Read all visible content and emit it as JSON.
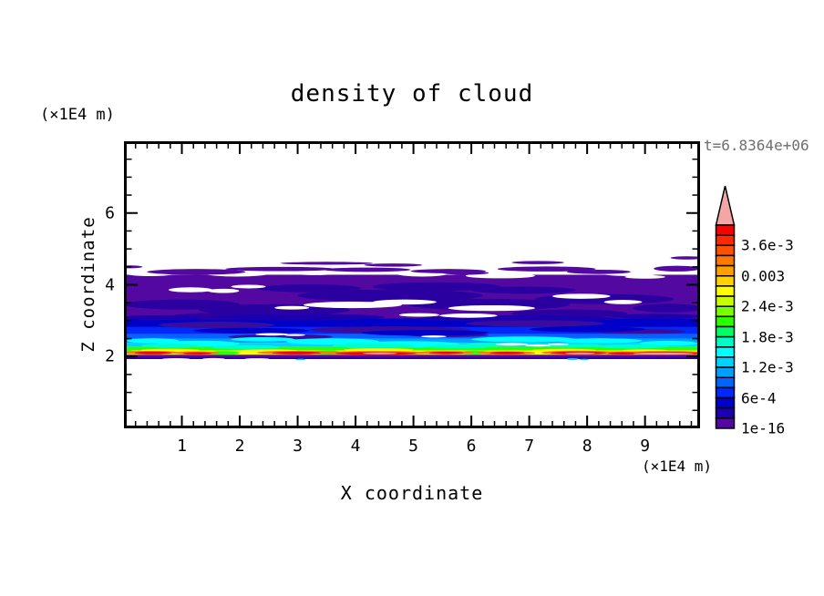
{
  "chart_data": {
    "type": "filled_contour",
    "title": "density of cloud",
    "xlabel": "X coordinate",
    "ylabel": "Z coordinate",
    "x_unit": "(×1E4 m)",
    "y_unit": "(×1E4 m)",
    "timestamp": "t=6.8364e+06",
    "timestamp_color": "#6e6e6e",
    "x_range": [
      0,
      9.95
    ],
    "z_range": [
      0,
      8
    ],
    "x_major_ticks": [
      1,
      2,
      3,
      4,
      5,
      6,
      7,
      8,
      9
    ],
    "x_minor_step": 0.2,
    "z_major_ticks": [
      2,
      4,
      6
    ],
    "z_minor_step": 0.5,
    "grid": false,
    "colorbar": {
      "position": "right",
      "segment_colors_bottom_to_top": [
        "#5408A2",
        "#1C00AE",
        "#0000C8",
        "#0028FA",
        "#0064FF",
        "#00A0FF",
        "#00D2FF",
        "#00FFFF",
        "#00FFC8",
        "#00FF64",
        "#28FF00",
        "#78FF00",
        "#C8FF00",
        "#FFFF00",
        "#FFD200",
        "#FFA000",
        "#FF7800",
        "#FF5000",
        "#FF2800",
        "#FA0000"
      ],
      "overflow_arrow_color": "#F2A6A6",
      "labels": [
        {
          "text": "1e-16",
          "boundary_index": 0
        },
        {
          "text": "6e-4",
          "boundary_index": 3
        },
        {
          "text": "1.2e-3",
          "boundary_index": 6
        },
        {
          "text": "1.8e-3",
          "boundary_index": 9
        },
        {
          "text": "2.4e-3",
          "boundary_index": 12
        },
        {
          "text": "0.003",
          "boundary_index": 15
        },
        {
          "text": "3.6e-3",
          "boundary_index": 18
        }
      ],
      "level_step": 0.0002,
      "level_min": 1e-16,
      "level_max": 0.004
    },
    "field_layers": [
      [
        "r",
        0,
        3.06,
        9.95,
        4.28,
        "#5408A2"
      ],
      [
        "r",
        0,
        2.82,
        9.95,
        3.06,
        "#0000C8"
      ],
      [
        "r",
        0,
        2.62,
        9.95,
        2.82,
        "#0028FA"
      ],
      [
        "r",
        0,
        2.5,
        9.95,
        2.62,
        "#0064FF"
      ],
      [
        "r",
        0,
        2.38,
        9.95,
        2.5,
        "#00A0FF"
      ],
      [
        "r",
        0,
        2.27,
        9.95,
        2.38,
        "#00D2FF"
      ],
      [
        "r",
        0,
        2.17,
        9.95,
        2.27,
        "#28FF00"
      ],
      [
        "r",
        0,
        2.05,
        9.95,
        2.17,
        "#FFFF00"
      ],
      [
        "r",
        0,
        1.94,
        9.95,
        2.05,
        "#5408A2"
      ],
      [
        "r",
        0,
        1.93,
        9.95,
        1.975,
        "#2B00A0"
      ],
      [
        "e",
        1.0,
        3.45,
        1.0,
        0.14,
        "#2B00A0"
      ],
      [
        "e",
        2.6,
        3.3,
        1.3,
        0.16,
        "#2B00A0"
      ],
      [
        "e",
        4.6,
        3.7,
        1.6,
        0.17,
        "#2B00A0"
      ],
      [
        "e",
        6.3,
        3.45,
        1.4,
        0.16,
        "#2B00A0"
      ],
      [
        "e",
        8.3,
        3.6,
        1.2,
        0.14,
        "#2B00A0"
      ],
      [
        "e",
        5.4,
        3.95,
        1.1,
        0.12,
        "#2B00A0"
      ],
      [
        "e",
        7.7,
        3.2,
        1.0,
        0.11,
        "#2B00A0"
      ],
      [
        "e",
        3.2,
        3.9,
        0.9,
        0.11,
        "#2B00A0"
      ],
      [
        "e",
        9.4,
        3.35,
        0.6,
        0.12,
        "#2B00A0"
      ],
      [
        "e",
        1.8,
        3.12,
        1.0,
        0.1,
        "#2B00A0"
      ],
      [
        "e",
        6.9,
        3.85,
        0.9,
        0.1,
        "#2B00A0"
      ],
      [
        "e",
        3.0,
        3.1,
        1.5,
        0.09,
        "#1C00AE"
      ],
      [
        "e",
        6.8,
        3.06,
        1.7,
        0.09,
        "#1C00AE"
      ],
      [
        "e",
        9.2,
        3.12,
        0.8,
        0.07,
        "#1C00AE"
      ],
      [
        "e",
        0.6,
        3.08,
        0.7,
        0.07,
        "#1C00AE"
      ],
      [
        "e",
        1.15,
        3.86,
        0.38,
        0.07,
        "#FFFFFF"
      ],
      [
        "e",
        1.72,
        3.83,
        0.27,
        0.06,
        "#FFFFFF"
      ],
      [
        "e",
        2.15,
        3.95,
        0.3,
        0.05,
        "#FFFFFF"
      ],
      [
        "e",
        3.95,
        3.44,
        0.85,
        0.09,
        "#FFFFFF"
      ],
      [
        "e",
        4.85,
        3.52,
        0.55,
        0.07,
        "#FFFFFF"
      ],
      [
        "e",
        6.35,
        3.35,
        0.75,
        0.08,
        "#FFFFFF"
      ],
      [
        "e",
        7.9,
        3.68,
        0.5,
        0.07,
        "#FFFFFF"
      ],
      [
        "e",
        8.62,
        3.52,
        0.33,
        0.06,
        "#FFFFFF"
      ],
      [
        "e",
        5.95,
        3.14,
        0.5,
        0.06,
        "#FFFFFF"
      ],
      [
        "e",
        2.9,
        3.36,
        0.3,
        0.05,
        "#FFFFFF"
      ],
      [
        "e",
        5.1,
        3.16,
        0.35,
        0.05,
        "#FFFFFF"
      ],
      [
        "e",
        0.45,
        4.33,
        0.45,
        0.09,
        "#FFFFFF"
      ],
      [
        "e",
        1.95,
        4.31,
        0.55,
        0.08,
        "#FFFFFF"
      ],
      [
        "e",
        3.3,
        4.36,
        0.5,
        0.09,
        "#FFFFFF"
      ],
      [
        "e",
        5.15,
        4.31,
        0.45,
        0.08,
        "#FFFFFF"
      ],
      [
        "e",
        6.55,
        4.42,
        0.95,
        0.16,
        "#FFFFFF"
      ],
      [
        "e",
        6.5,
        4.25,
        0.6,
        0.07,
        "#FFFFFF"
      ],
      [
        "e",
        8.75,
        4.32,
        0.5,
        0.08,
        "#FFFFFF"
      ],
      [
        "e",
        9.0,
        4.22,
        0.35,
        0.05,
        "#FFFFFF"
      ],
      [
        "e",
        1.25,
        4.36,
        0.85,
        0.08,
        "#5408A2"
      ],
      [
        "e",
        2.7,
        4.44,
        0.95,
        0.06,
        "#5408A2"
      ],
      [
        "e",
        4.2,
        4.42,
        0.75,
        0.06,
        "#5408A2"
      ],
      [
        "e",
        4.65,
        4.55,
        0.5,
        0.045,
        "#5408A2"
      ],
      [
        "e",
        5.6,
        4.38,
        0.65,
        0.06,
        "#5408A2"
      ],
      [
        "e",
        7.3,
        4.44,
        0.85,
        0.07,
        "#5408A2"
      ],
      [
        "e",
        7.15,
        4.62,
        0.45,
        0.045,
        "#5408A2"
      ],
      [
        "e",
        9.55,
        4.45,
        0.4,
        0.08,
        "#5408A2"
      ],
      [
        "e",
        9.72,
        4.75,
        0.28,
        0.045,
        "#5408A2"
      ],
      [
        "e",
        0.1,
        4.5,
        0.22,
        0.04,
        "#5408A2"
      ],
      [
        "e",
        3.5,
        4.6,
        0.8,
        0.04,
        "#5408A2"
      ],
      [
        "e",
        8.2,
        4.36,
        0.55,
        0.06,
        "#5408A2"
      ],
      [
        "e",
        5.9,
        4.33,
        0.4,
        0.05,
        "#5408A2"
      ],
      [
        "e",
        2.7,
        2.55,
        0.9,
        0.07,
        "#3A0C9E"
      ],
      [
        "e",
        1.6,
        2.88,
        1.0,
        0.09,
        "#3A0C9E"
      ],
      [
        "e",
        4.6,
        2.74,
        1.4,
        0.1,
        "#3A0C9E"
      ],
      [
        "e",
        7.1,
        2.92,
        1.2,
        0.09,
        "#3A0C9E"
      ],
      [
        "e",
        5.6,
        2.6,
        0.7,
        0.06,
        "#3A0C9E"
      ],
      [
        "e",
        8.9,
        2.7,
        0.8,
        0.07,
        "#3A0C9E"
      ],
      [
        "e",
        2.2,
        2.72,
        1.0,
        0.08,
        "#0000C8"
      ],
      [
        "e",
        5.2,
        2.66,
        1.1,
        0.08,
        "#0000C8"
      ],
      [
        "e",
        8.0,
        2.76,
        1.0,
        0.08,
        "#0000C8"
      ],
      [
        "e",
        1.3,
        2.36,
        0.7,
        0.08,
        "#00FFFF"
      ],
      [
        "e",
        3.6,
        2.42,
        0.8,
        0.09,
        "#00FFFF"
      ],
      [
        "e",
        4.9,
        2.34,
        0.9,
        0.09,
        "#00FFFF"
      ],
      [
        "e",
        6.9,
        2.48,
        0.9,
        0.08,
        "#00FFFF"
      ],
      [
        "e",
        9.4,
        2.37,
        0.5,
        0.07,
        "#00FFFF"
      ],
      [
        "e",
        2.4,
        2.48,
        0.55,
        0.06,
        "#00FFFF"
      ],
      [
        "e",
        8.2,
        2.44,
        0.75,
        0.07,
        "#00FFFF"
      ],
      [
        "e",
        0.5,
        2.44,
        0.45,
        0.07,
        "#00FFFF"
      ],
      [
        "e",
        0.8,
        2.3,
        0.5,
        0.06,
        "#00FFC8"
      ],
      [
        "e",
        2.1,
        2.26,
        0.6,
        0.06,
        "#00FFC8"
      ],
      [
        "e",
        4.3,
        2.3,
        0.7,
        0.07,
        "#00FFC8"
      ],
      [
        "e",
        5.8,
        2.28,
        0.55,
        0.06,
        "#00FFC8"
      ],
      [
        "e",
        7.8,
        2.3,
        0.5,
        0.05,
        "#00FFC8"
      ],
      [
        "e",
        8.8,
        2.28,
        0.6,
        0.06,
        "#00FFC8"
      ],
      [
        "e",
        6.35,
        2.33,
        0.45,
        0.05,
        "#00FFC8"
      ],
      [
        "e",
        6.7,
        2.34,
        0.28,
        0.035,
        "#FFFFFF"
      ],
      [
        "e",
        7.15,
        2.31,
        0.22,
        0.03,
        "#FFFFFF"
      ],
      [
        "e",
        7.5,
        2.34,
        0.18,
        0.028,
        "#FFFFFF"
      ],
      [
        "e",
        2.55,
        2.62,
        0.28,
        0.035,
        "#FFFFFF"
      ],
      [
        "e",
        2.95,
        2.6,
        0.18,
        0.03,
        "#FFFFFF"
      ],
      [
        "e",
        5.35,
        2.56,
        0.22,
        0.03,
        "#FFFFFF"
      ],
      [
        "e",
        0.8,
        2.18,
        0.5,
        0.035,
        "#FFFF00"
      ],
      [
        "e",
        2.5,
        2.17,
        0.5,
        0.03,
        "#FFFF00"
      ],
      [
        "e",
        4.4,
        2.19,
        0.6,
        0.04,
        "#FFFF00"
      ],
      [
        "e",
        7.6,
        2.18,
        0.55,
        0.035,
        "#FFFF00"
      ],
      [
        "e",
        9.0,
        2.17,
        0.4,
        0.03,
        "#FFFF00"
      ],
      [
        "e",
        1.72,
        2.1,
        0.28,
        0.055,
        "#28FF00"
      ],
      [
        "e",
        3.5,
        2.11,
        0.3,
        0.055,
        "#28FF00"
      ],
      [
        "e",
        6.05,
        2.11,
        0.28,
        0.05,
        "#28FF00"
      ],
      [
        "e",
        8.15,
        2.1,
        0.18,
        0.045,
        "#28FF00"
      ],
      [
        "e",
        0.05,
        2.12,
        0.15,
        0.05,
        "#28FF00"
      ],
      [
        "e",
        0.45,
        2.11,
        0.5,
        0.05,
        "#FF7800"
      ],
      [
        "e",
        1.25,
        2.1,
        0.4,
        0.045,
        "#FF7800"
      ],
      [
        "e",
        2.95,
        2.11,
        0.65,
        0.05,
        "#FF7800"
      ],
      [
        "e",
        4.35,
        2.1,
        0.95,
        0.055,
        "#FF7800"
      ],
      [
        "e",
        5.55,
        2.11,
        0.5,
        0.045,
        "#FF7800"
      ],
      [
        "e",
        6.6,
        2.1,
        0.5,
        0.05,
        "#FF7800"
      ],
      [
        "e",
        7.85,
        2.11,
        0.65,
        0.055,
        "#FF7800"
      ],
      [
        "e",
        8.6,
        2.1,
        0.4,
        0.045,
        "#FF7800"
      ],
      [
        "e",
        9.35,
        2.1,
        0.75,
        0.055,
        "#FF7800"
      ],
      [
        "e",
        0.5,
        2.1,
        0.32,
        0.038,
        "#FA0000"
      ],
      [
        "e",
        2.98,
        2.1,
        0.42,
        0.04,
        "#FA0000"
      ],
      [
        "e",
        4.35,
        2.09,
        0.7,
        0.04,
        "#FA0000"
      ],
      [
        "e",
        5.57,
        2.1,
        0.3,
        0.032,
        "#FA0000"
      ],
      [
        "e",
        6.62,
        2.1,
        0.3,
        0.032,
        "#FA0000"
      ],
      [
        "e",
        7.85,
        2.1,
        0.48,
        0.04,
        "#FA0000"
      ],
      [
        "e",
        9.35,
        2.09,
        0.62,
        0.04,
        "#FA0000"
      ],
      [
        "e",
        1.27,
        2.09,
        0.25,
        0.03,
        "#FA0000"
      ],
      [
        "e",
        8.62,
        2.09,
        0.26,
        0.03,
        "#FA0000"
      ],
      [
        "e",
        4.42,
        2.09,
        0.3,
        0.026,
        "#F2A6A6"
      ],
      [
        "e",
        7.88,
        2.09,
        0.26,
        0.024,
        "#F2A6A6"
      ],
      [
        "e",
        9.32,
        2.08,
        0.52,
        0.03,
        "#F2A6A6"
      ],
      [
        "e",
        0.9,
        1.925,
        0.25,
        0.03,
        "#FFFFFF"
      ],
      [
        "e",
        1.55,
        1.93,
        0.2,
        0.028,
        "#FFFFFF"
      ],
      [
        "e",
        2.3,
        1.925,
        0.22,
        0.028,
        "#FFFFFF"
      ],
      [
        "e",
        7.75,
        1.93,
        0.1,
        0.025,
        "#00D2FF"
      ],
      [
        "e",
        7.95,
        1.92,
        0.08,
        0.02,
        "#00D2FF"
      ],
      [
        "e",
        3.05,
        1.92,
        0.09,
        0.02,
        "#00D2FF"
      ]
    ]
  },
  "layout_colors": {
    "background": "#ffffff",
    "axis": "#000000"
  }
}
